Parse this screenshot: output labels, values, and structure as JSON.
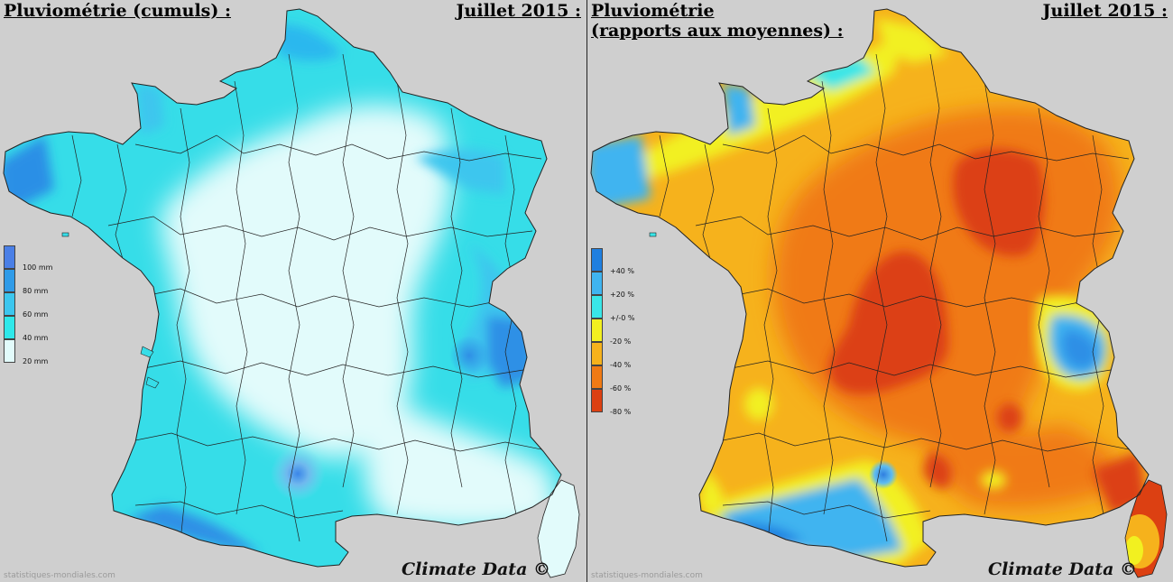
{
  "left_panel": {
    "title": "Pluviométrie (cumuls) :",
    "month": "Juillet 2015 :",
    "brand": "Climate Data ©",
    "source": "statistiques-mondiales.com",
    "legend": [
      {
        "label": "100 mm",
        "color": "#4a7fe6"
      },
      {
        "label": "80 mm",
        "color": "#2f9be8"
      },
      {
        "label": "60 mm",
        "color": "#3cc6ee"
      },
      {
        "label": "40 mm",
        "color": "#2fe8ea"
      },
      {
        "label": "20 mm",
        "color": "#e2fbfb"
      }
    ]
  },
  "right_panel": {
    "title_line1": "Pluviométrie",
    "title_line2": "(rapports aux moyennes) :",
    "month": "Juillet 2015 :",
    "brand": "Climate Data ©",
    "source": "statistiques-mondiales.com",
    "legend": [
      {
        "label": "+40 %",
        "color": "#1f7fe0"
      },
      {
        "label": "+20 %",
        "color": "#3fb4f0"
      },
      {
        "label": "+/-0 %",
        "color": "#39e6e8"
      },
      {
        "label": "-20 %",
        "color": "#f2f020"
      },
      {
        "label": "-40 %",
        "color": "#f6b21c"
      },
      {
        "label": "-60 %",
        "color": "#f07a14"
      },
      {
        "label": "-80 %",
        "color": "#dc4012"
      }
    ]
  }
}
